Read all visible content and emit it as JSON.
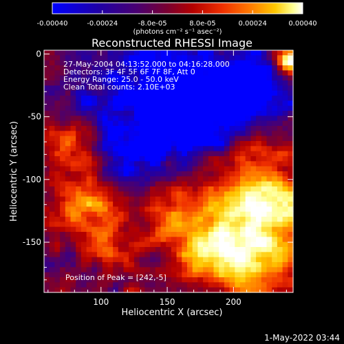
{
  "chart_data": {
    "type": "heatmap",
    "title": "Reconstructed RHESSI Image",
    "xlabel": "Heliocentric X (arcsec)",
    "ylabel": "Heliocentric Y (arcsec)",
    "xlim": [
      57,
      245
    ],
    "ylim": [
      -190,
      3
    ],
    "x_ticks": [
      100,
      150,
      200
    ],
    "y_ticks": [
      0,
      -50,
      -100,
      -150
    ],
    "grid": false,
    "colorbar": {
      "position": "top",
      "min": -0.0004,
      "max": 0.0004,
      "tick_values": [
        -0.0004,
        -0.00024,
        -8e-05,
        8e-05,
        0.00024,
        0.0004
      ],
      "tick_labels": [
        "-0.00040",
        "-0.00024",
        "-8.0e-05",
        "8.0e-05",
        "0.00024",
        "0.00040"
      ],
      "units_label": "(photons cm⁻² s⁻¹ asec⁻²)",
      "colormap": [
        "#0000ff",
        "#1e00a8",
        "#4a0070",
        "#7a0030",
        "#b40000",
        "#f03000",
        "#ff7a00",
        "#ffc800",
        "#ffff90",
        "#ffffff"
      ]
    },
    "info_lines": [
      "27-May-2004 04:13:52.000 to 04:16:28.000",
      "Detectors: 3F 4F 5F 6F 7F 8F, Att 0",
      "Energy Range: 25.0 - 50.0 keV",
      "Clean     Total counts: 2.10E+03"
    ],
    "peak_label": "Position of Peak = [242,-5]",
    "peak": [
      242,
      -5
    ],
    "grid_cols": 47,
    "grid_rows": 48,
    "map_seed": 2004
  },
  "footer": {
    "timestamp": "1-May-2022 03:44"
  }
}
